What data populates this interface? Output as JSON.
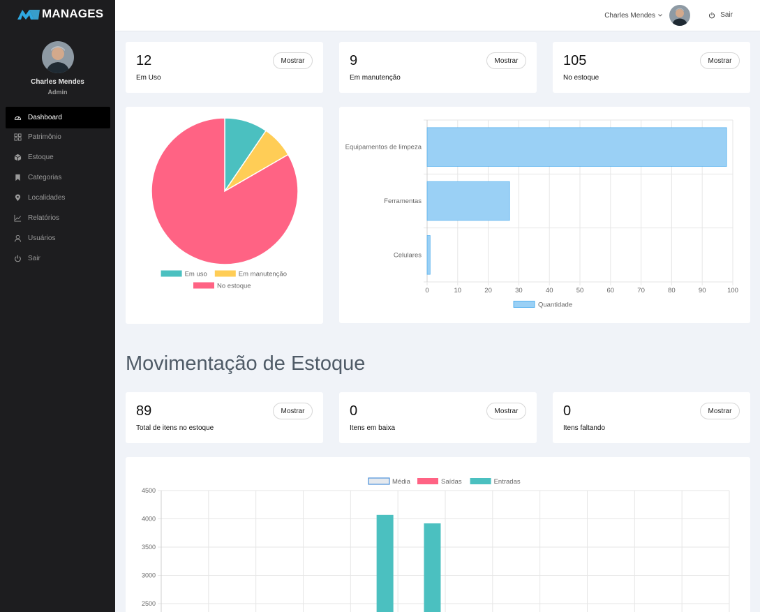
{
  "brand": {
    "name": "MANAGES"
  },
  "profile": {
    "name": "Charles Mendes",
    "role": "Admin"
  },
  "nav": [
    {
      "label": "Dashboard",
      "icon": "speedometer-icon",
      "active": true
    },
    {
      "label": "Patrimônio",
      "icon": "grid-icon"
    },
    {
      "label": "Estoque",
      "icon": "box-icon"
    },
    {
      "label": "Categorias",
      "icon": "bookmark-icon"
    },
    {
      "label": "Localidades",
      "icon": "map-pin-icon"
    },
    {
      "label": "Relatórios",
      "icon": "chart-line-icon"
    },
    {
      "label": "Usuários",
      "icon": "users-icon"
    },
    {
      "label": "Sair",
      "icon": "power-icon"
    }
  ],
  "topbar": {
    "user_name": "Charles Mendes",
    "logout_label": "Sair"
  },
  "stats_top": [
    {
      "value": "12",
      "label": "Em Uso",
      "button": "Mostrar"
    },
    {
      "value": "9",
      "label": "Em manutenção",
      "button": "Mostrar"
    },
    {
      "value": "105",
      "label": "No estoque",
      "button": "Mostrar"
    }
  ],
  "section_title": "Movimentação de Estoque",
  "stats_bottom": [
    {
      "value": "89",
      "label": "Total de itens no estoque",
      "button": "Mostrar"
    },
    {
      "value": "0",
      "label": "Itens em baixa",
      "button": "Mostrar"
    },
    {
      "value": "0",
      "label": "Itens faltando",
      "button": "Mostrar"
    }
  ],
  "chart_data": [
    {
      "type": "pie",
      "labels": [
        "Em uso",
        "Em manutenção",
        "No estoque"
      ],
      "values": [
        12,
        9,
        105
      ],
      "colors": [
        "#4bc0c0",
        "#ffcd56",
        "#ff6384"
      ],
      "legend": "bottom"
    },
    {
      "type": "bar",
      "orientation": "horizontal",
      "categories": [
        "Equipamentos de limpeza",
        "Ferramentas",
        "Celulares"
      ],
      "series": [
        {
          "name": "Quantidade",
          "values": [
            98,
            27,
            1
          ],
          "color": "#9ad0f5",
          "border": "#36a2eb"
        }
      ],
      "xlim": [
        0,
        100
      ],
      "xticks": [
        0,
        10,
        20,
        30,
        40,
        50,
        60,
        70,
        80,
        90,
        100
      ],
      "legend": "bottom",
      "grid": true
    },
    {
      "type": "bar",
      "legend_entries": [
        {
          "name": "Média",
          "color": "#e5e9ee",
          "border": "#4a90d9"
        },
        {
          "name": "Saídas",
          "color": "#ff6384"
        },
        {
          "name": "Entradas",
          "color": "#4bc0c0"
        }
      ],
      "ylim_visible": [
        2500,
        4500
      ],
      "yticks": [
        4500,
        4000,
        3500,
        3000,
        2500
      ],
      "category_count": 12,
      "series": [
        {
          "name": "Entradas",
          "values": [
            null,
            null,
            null,
            null,
            4070,
            3920,
            null,
            null,
            null,
            null,
            null,
            null
          ],
          "color": "#4bc0c0"
        }
      ],
      "legend": "top",
      "grid": true
    }
  ]
}
